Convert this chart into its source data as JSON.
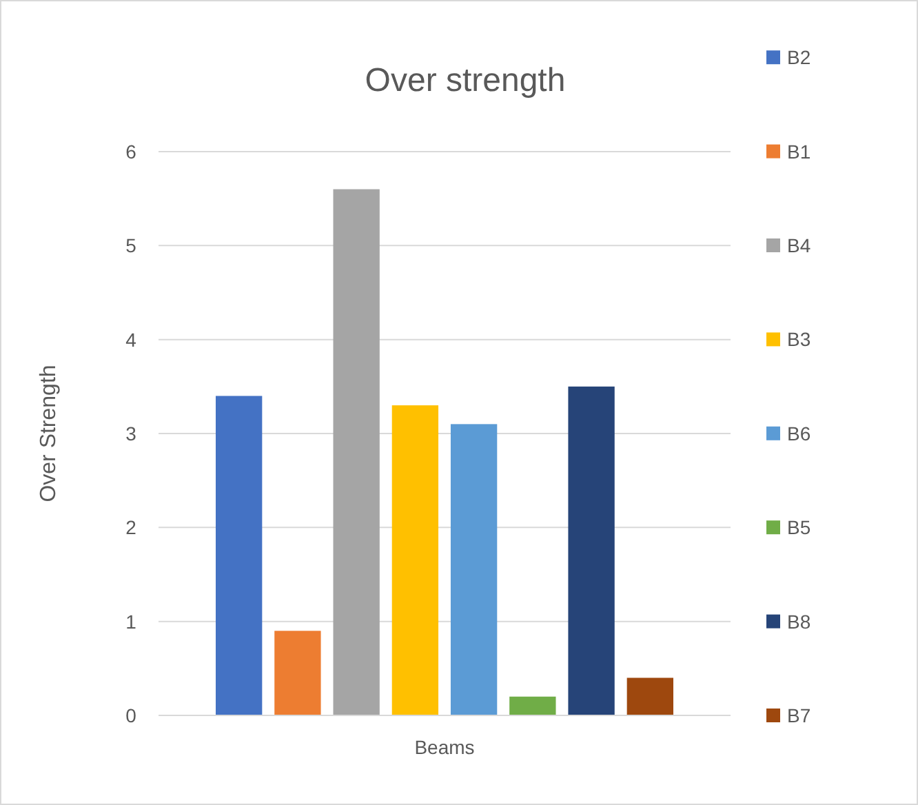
{
  "chart_data": {
    "type": "bar",
    "title": "Over strength",
    "ylabel": "Over Strength",
    "categories": [
      "Beams"
    ],
    "series": [
      {
        "name": "B2",
        "color": "#4472c4",
        "values": [
          3.4
        ]
      },
      {
        "name": "B1",
        "color": "#ed7d31",
        "values": [
          0.9
        ]
      },
      {
        "name": "B4",
        "color": "#a5a5a5",
        "values": [
          5.6
        ]
      },
      {
        "name": "B3",
        "color": "#ffc000",
        "values": [
          3.3
        ]
      },
      {
        "name": "B6",
        "color": "#5b9bd5",
        "values": [
          3.1
        ]
      },
      {
        "name": "B5",
        "color": "#70ad47",
        "values": [
          0.2
        ]
      },
      {
        "name": "B8",
        "color": "#264478",
        "values": [
          3.5
        ]
      },
      {
        "name": "B7",
        "color": "#9e480e",
        "values": [
          0.4
        ]
      }
    ],
    "ylim": [
      0,
      6
    ],
    "yticks": [
      0,
      1,
      2,
      3,
      4,
      5,
      6
    ],
    "grid": "y",
    "legend": "right"
  }
}
